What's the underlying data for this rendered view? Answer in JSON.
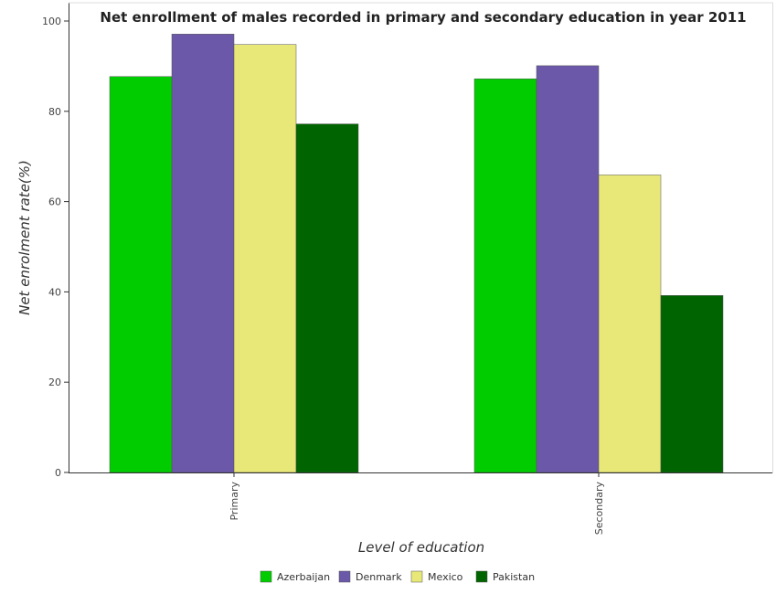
{
  "chart_data": {
    "type": "bar",
    "title": "Net enrollment of males recorded in primary and secondary education in year 2011",
    "xlabel": "Level of education",
    "ylabel": "Net enrolment rate(%)",
    "ylim": [
      0,
      100
    ],
    "yticks": [
      "0",
      "20",
      "40",
      "60",
      "80",
      "100"
    ],
    "categories": [
      "Primary",
      "Secondary"
    ],
    "series": [
      {
        "name": "Azerbaijan",
        "color": "#00cc00",
        "values": [
          87.7,
          87.2
        ]
      },
      {
        "name": "Denmark",
        "color": "#6b58a8",
        "values": [
          97.1,
          90.1
        ]
      },
      {
        "name": "Mexico",
        "color": "#e8e878",
        "values": [
          94.8,
          65.9
        ]
      },
      {
        "name": "Pakistan",
        "color": "#006400",
        "values": [
          77.2,
          39.2
        ]
      }
    ],
    "legend_position": "bottom-center",
    "grid": false
  }
}
